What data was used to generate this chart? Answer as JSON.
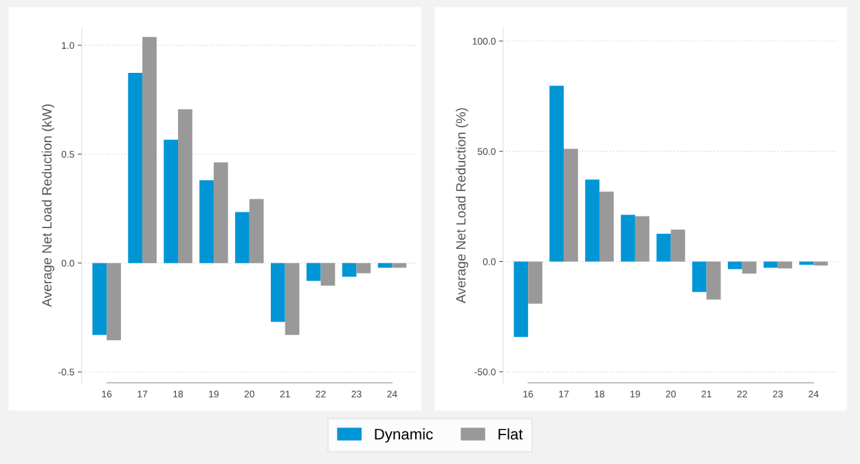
{
  "chart_data": [
    {
      "type": "bar",
      "ylabel": "Average Net Load Reduction (kW)",
      "categories": [
        "16",
        "17",
        "18",
        "19",
        "20",
        "21",
        "22",
        "23",
        "24"
      ],
      "series": [
        {
          "name": "Dynamic",
          "color": "#0096d6",
          "values": [
            -0.33,
            0.873,
            0.566,
            0.38,
            0.234,
            -0.27,
            -0.082,
            -0.063,
            -0.022
          ]
        },
        {
          "name": "Flat",
          "color": "#999999",
          "values": [
            -0.355,
            1.038,
            0.706,
            0.462,
            0.294,
            -0.33,
            -0.104,
            -0.047,
            -0.022
          ]
        }
      ],
      "ylim": [
        -0.55,
        1.08
      ],
      "yticks": [
        {
          "value": -0.5,
          "label": "-0.5"
        },
        {
          "value": 0,
          "label": "0.0"
        },
        {
          "value": 0.5,
          "label": "0.5"
        },
        {
          "value": 1,
          "label": "1.0"
        }
      ],
      "grid": "y",
      "legend": "bottom"
    },
    {
      "type": "bar",
      "ylabel": "Average Net Load Reduction (%)",
      "categories": [
        "16",
        "17",
        "18",
        "19",
        "20",
        "21",
        "22",
        "23",
        "24"
      ],
      "series": [
        {
          "color": "#0096d6",
          "values": [
            -34.2,
            79.7,
            37.2,
            21.2,
            12.6,
            -13.8,
            -3.4,
            -2.8,
            -1.5
          ]
        },
        {
          "color": "#999999",
          "values": [
            -19.1,
            51.1,
            31.7,
            20.6,
            14.5,
            -17.2,
            -5.5,
            -3.1,
            -1.8
          ]
        }
      ],
      "ylim": [
        -55,
        106
      ],
      "yticks": [
        {
          "value": -50,
          "label": "-50.0"
        },
        {
          "value": 0,
          "label": "0.0"
        },
        {
          "value": 50,
          "label": "50.0"
        },
        {
          "value": 100,
          "label": "100.0"
        }
      ],
      "grid": "y"
    }
  ]
}
